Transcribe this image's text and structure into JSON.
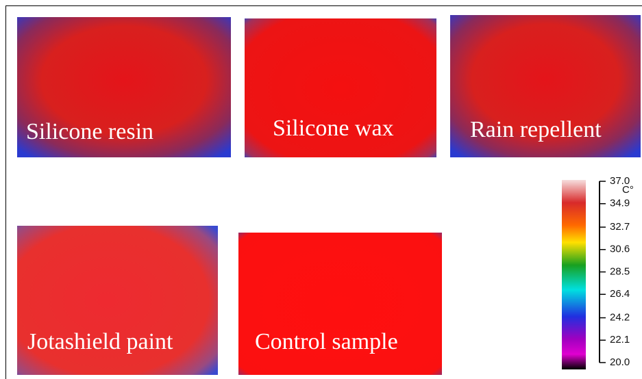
{
  "panels": [
    {
      "label": "Silicone resin"
    },
    {
      "label": "Silicone wax"
    },
    {
      "label": "Rain repellent"
    },
    {
      "label": "Jotashield paint"
    },
    {
      "label": "Control sample"
    }
  ],
  "colorbar": {
    "unit": "C°",
    "lim": [
      20,
      37
    ],
    "ticks": [
      {
        "value": 37,
        "label": "37.0"
      },
      34.9,
      32.7,
      30.6,
      28.5,
      26.4,
      24.2,
      22.1,
      {
        "value": 20,
        "label": "20.0"
      }
    ]
  }
}
